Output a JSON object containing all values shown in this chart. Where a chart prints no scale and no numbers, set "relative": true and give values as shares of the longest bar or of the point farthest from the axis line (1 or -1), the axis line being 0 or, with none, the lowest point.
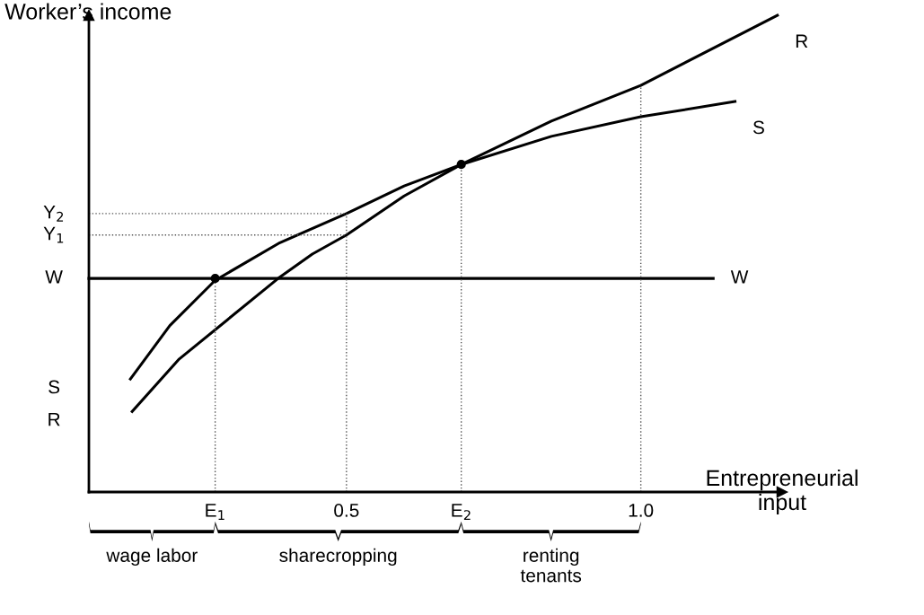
{
  "chart_data": {
    "type": "line",
    "relative": true,
    "xlabel": "Entrepreneurial\ninput",
    "ylabel": "Worker’s income",
    "xlim": [
      0.0625,
      1.24
    ],
    "xticks": [
      0.5,
      {
        "value": 1.0,
        "label": "1.0"
      }
    ],
    "series": [
      {
        "name": "R",
        "color": "#000000",
        "x": [
          0.136,
          0.216,
          0.384,
          0.442,
          0.5,
          0.598,
          0.695,
          0.848,
          1.0,
          1.232
        ],
        "values": [
          0.169,
          0.279,
          0.448,
          0.499,
          0.539,
          0.621,
          0.687,
          0.778,
          0.853,
          1.0
        ]
      },
      {
        "name": "S",
        "color": "#000000",
        "x": [
          0.133,
          0.2,
          0.277,
          0.387,
          0.5,
          0.598,
          0.695,
          0.848,
          1.0,
          1.16
        ],
        "values": [
          0.237,
          0.349,
          0.444,
          0.523,
          0.584,
          0.642,
          0.687,
          0.746,
          0.787,
          0.819
        ]
      },
      {
        "name": "W",
        "color": "#000000",
        "x": [
          0.0625,
          1.123
        ],
        "values": [
          0.448,
          0.448
        ]
      },
      {
        "type": "line",
        "line_style": "dotted",
        "color": "#555555",
        "x": [
          0.277,
          0.277
        ],
        "values": [
          0,
          0.448
        ]
      },
      {
        "type": "line",
        "line_style": "dotted",
        "color": "#555555",
        "x": [
          0.5,
          0.5
        ],
        "values": [
          0,
          0.584
        ]
      },
      {
        "type": "line",
        "line_style": "dotted",
        "color": "#555555",
        "x": [
          0.695,
          0.695
        ],
        "values": [
          0,
          0.687
        ]
      },
      {
        "type": "line",
        "line_style": "dotted",
        "color": "#555555",
        "x": [
          1.0,
          1.0
        ],
        "values": [
          0,
          0.853
        ]
      },
      {
        "type": "line",
        "line_style": "dotted",
        "color": "#555555",
        "x": [
          0.0625,
          0.5
        ],
        "values": [
          0.584,
          0.584
        ]
      },
      {
        "type": "line",
        "line_style": "dotted",
        "color": "#555555",
        "x": [
          0.0625,
          0.5
        ],
        "values": [
          0.539,
          0.539
        ]
      },
      {
        "type": "scatter",
        "marker": "circle",
        "color": "#000000",
        "x": [
          0.277,
          0.695
        ],
        "values": [
          0.448,
          0.687
        ]
      }
    ],
    "annotations": [
      {
        "text": "Y$_{2}$",
        "x": 0.0625,
        "y": 0.584
      },
      {
        "text": "Y$_{1}$",
        "x": 0.0625,
        "y": 0.539
      },
      {
        "text": "E$_{1}$",
        "x": 0.277,
        "y": 0
      },
      {
        "text": "E$_{2}$",
        "x": 0.695,
        "y": 0
      },
      "wage labor",
      "sharecropping",
      "renting\ntenants"
    ],
    "grid": false,
    "legend": false
  }
}
